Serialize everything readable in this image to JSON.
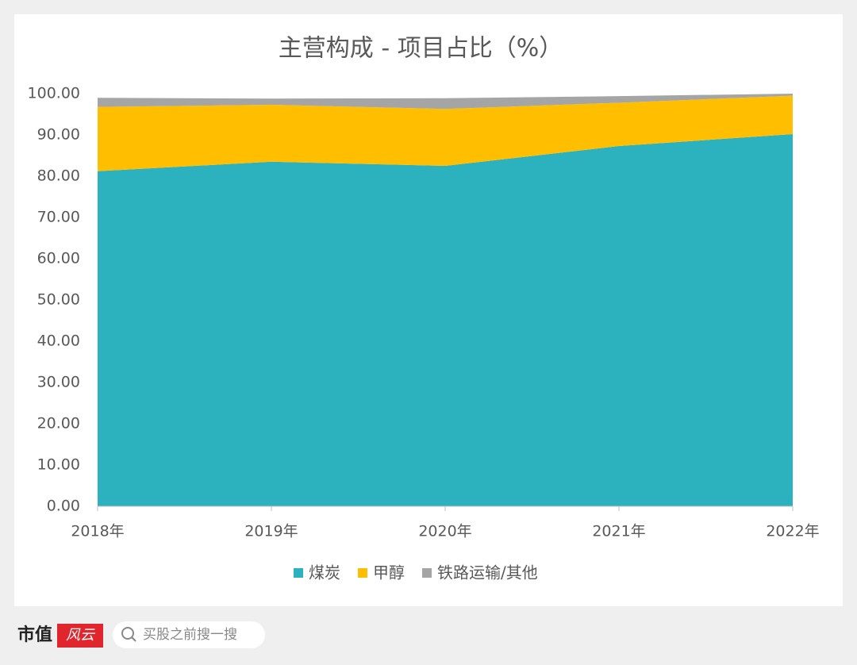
{
  "chart_data": {
    "type": "stacked_area",
    "title": "主营构成 - 项目占比（%）",
    "categories": [
      "2018年",
      "2019年",
      "2020年",
      "2021年",
      "2022年"
    ],
    "series": [
      {
        "name": "煤炭",
        "color": "#2cb1bf",
        "values": [
          81.2,
          83.5,
          82.5,
          87.3,
          90.2
        ]
      },
      {
        "name": "甲醇",
        "color": "#ffbf00",
        "values": [
          15.6,
          13.8,
          13.8,
          10.5,
          9.3
        ]
      },
      {
        "name": "铁路运输/其他",
        "color": "#a5a5a5",
        "values": [
          2.2,
          1.5,
          2.6,
          1.6,
          0.5
        ]
      }
    ],
    "ylim": [
      0,
      100
    ],
    "yticks": [
      {
        "value": 0,
        "label": "0.00"
      },
      {
        "value": 10,
        "label": "10.00"
      },
      {
        "value": 20,
        "label": "20.00"
      },
      {
        "value": 30,
        "label": "30.00"
      },
      {
        "value": 40,
        "label": "40.00"
      },
      {
        "value": 50,
        "label": "50.00"
      },
      {
        "value": 60,
        "label": "60.00"
      },
      {
        "value": 70,
        "label": "70.00"
      },
      {
        "value": 80,
        "label": "80.00"
      },
      {
        "value": 90,
        "label": "90.00"
      },
      {
        "value": 100,
        "label": "100.00"
      }
    ],
    "legend": "bottom"
  },
  "footer": {
    "brand": "市值",
    "brand_mark": "风云",
    "search": "买股之前搜一搜"
  }
}
